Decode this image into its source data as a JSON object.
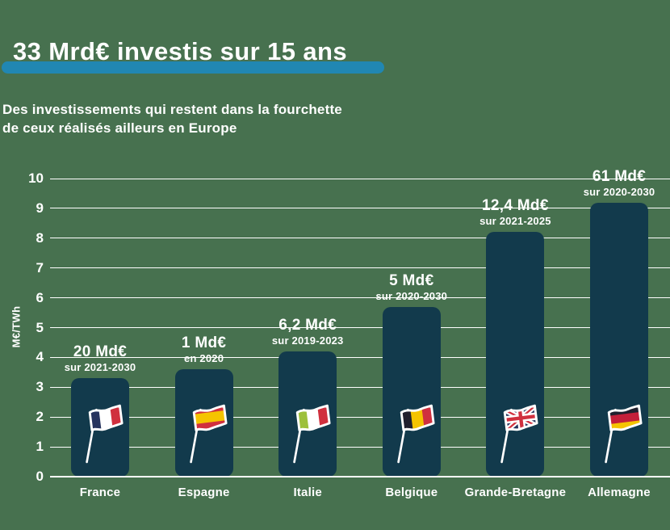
{
  "header": {
    "title": "33 Mrd€ investis sur 15 ans",
    "highlight_color": "#2187b2"
  },
  "subtitle": {
    "line1": "Des investissements qui restent dans la fourchette",
    "line2": "de ceux réalisés ailleurs en Europe"
  },
  "colors": {
    "background": "#47714f",
    "bar": "#123a4c",
    "grid": "#ffffff",
    "text": "#ffffff"
  },
  "chart_data": {
    "type": "bar",
    "title": "33 Mrd€ investis sur 15 ans",
    "xlabel": "",
    "ylabel": "M€/TWh",
    "ylim": [
      0,
      10
    ],
    "yticks": [
      0,
      1,
      2,
      3,
      4,
      5,
      6,
      7,
      8,
      9,
      10
    ],
    "grid": true,
    "legend": false,
    "categories": [
      "France",
      "Espagne",
      "Italie",
      "Belgique",
      "Grande-Bretagne",
      "Allemagne"
    ],
    "values": [
      3.3,
      3.6,
      4.2,
      5.7,
      8.2,
      9.2
    ],
    "annotations": [
      {
        "amount": "20 Md€",
        "period": "sur 2021-2030"
      },
      {
        "amount": "1 Md€",
        "period": "en 2020"
      },
      {
        "amount": "6,2 Md€",
        "period": "sur 2019-2023"
      },
      {
        "amount": "5 Md€",
        "period": "sur 2020-2030"
      },
      {
        "amount": "12,4 Md€",
        "period": "sur 2021-2025"
      },
      {
        "amount": "61 Md€",
        "period": "sur 2020-2030"
      }
    ],
    "flags": [
      {
        "country": "france",
        "style": "stripes-v",
        "colors": [
          "#27345e",
          "#ffffff",
          "#d0303e"
        ]
      },
      {
        "country": "espagne",
        "style": "stripes-h",
        "colors": [
          "#d0303e",
          "#f5c400",
          "#d0303e"
        ],
        "rows": [
          0,
          8,
          20,
          30
        ]
      },
      {
        "country": "italie",
        "style": "stripes-v",
        "colors": [
          "#9dc03b",
          "#ffffff",
          "#d0303e"
        ]
      },
      {
        "country": "belgique",
        "style": "stripes-v",
        "colors": [
          "#20202e",
          "#f5c400",
          "#d0303e"
        ]
      },
      {
        "country": "grande-bretagne",
        "style": "union-jack",
        "colors": [
          "#27345e",
          "#ffffff",
          "#d0303e"
        ]
      },
      {
        "country": "allemagne",
        "style": "stripes-h",
        "colors": [
          "#20202e",
          "#c41f3a",
          "#f5c400"
        ]
      }
    ]
  }
}
